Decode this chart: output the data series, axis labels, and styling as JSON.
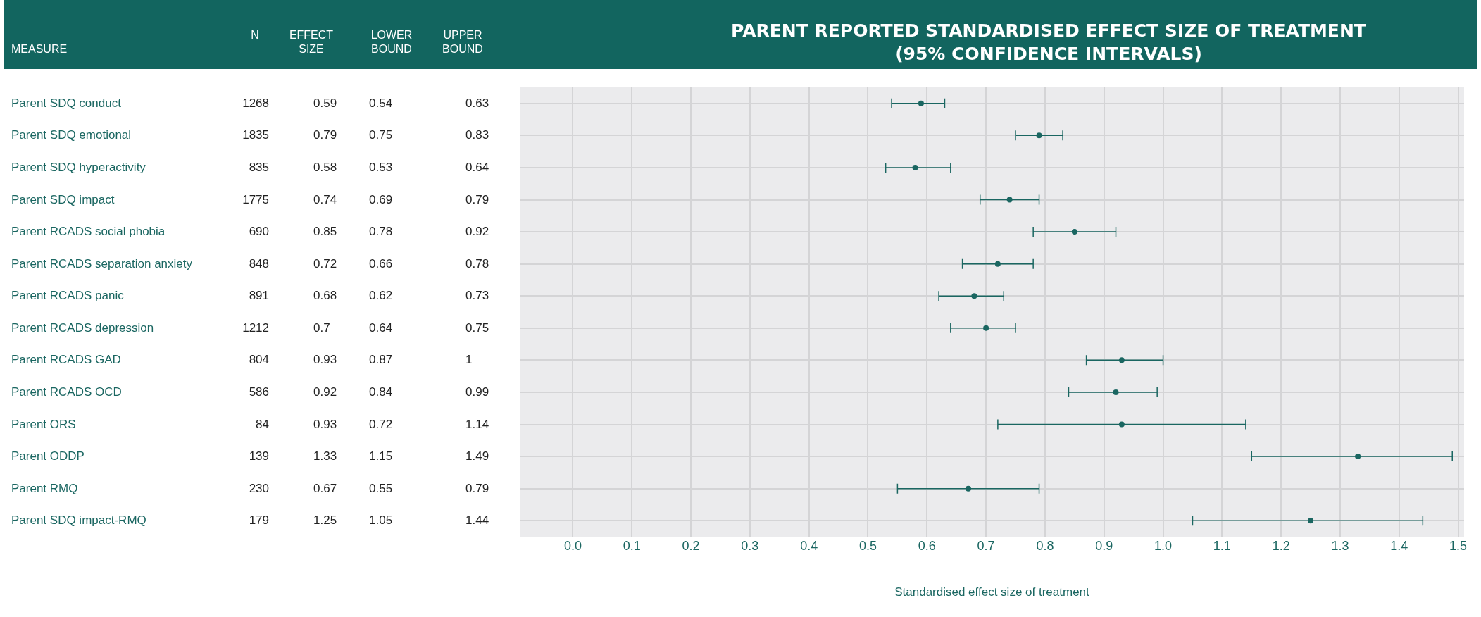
{
  "chart_data": [
    {
      "type": "other",
      "annotations": [
        "MEASURE",
        "N",
        "EFFECT SIZE",
        "LOWER BOUND",
        "UPPER BOUND",
        "Parent SDQ conduct",
        "1268",
        "0.59",
        "0.54",
        "0.63",
        "Parent SDQ emotional",
        "1835",
        "0.79",
        "0.75",
        "0.83",
        "Parent SDQ hyperactivity",
        "835",
        "0.58",
        "0.53",
        "0.64",
        "Parent SDQ impact",
        "1775",
        "0.74",
        "0.69",
        "0.79",
        "Parent RCADS social phobia",
        "690",
        "0.85",
        "0.78",
        "0.92",
        "Parent RCADS separation anxiety",
        "848",
        "0.72",
        "0.66",
        "0.78",
        "Parent RCADS panic",
        "891",
        "0.68",
        "0.62",
        "0.73",
        "Parent RCADS depression",
        "1212",
        "0.7",
        "0.64",
        "0.75",
        "Parent RCADS GAD",
        "804",
        "0.93",
        "0.87",
        "1",
        "Parent RCADS OCD",
        "586",
        "0.92",
        "0.84",
        "0.99",
        "Parent ORS",
        "84",
        "0.93",
        "0.72",
        "1.14",
        "Parent ODDP",
        "139",
        "1.33",
        "1.15",
        "1.49",
        "Parent RMQ",
        "230",
        "0.67",
        "0.55",
        "0.79",
        "Parent SDQ impact-RMQ",
        "179",
        "1.25",
        "1.05",
        "1.44"
      ]
    },
    {
      "type": "scatter",
      "orientation": "horizontal",
      "title": "PARENT REPORTED STANDARDISED EFFECT SIZE OF TREATMENT\n(95% CONFIDENCE INTERVALS)",
      "xlabel": "Standardised effect size of treatment",
      "categories": [
        null,
        null,
        null,
        null,
        null,
        null,
        null,
        null,
        null,
        null,
        null,
        null,
        null,
        null
      ],
      "values": [
        0.59,
        0.79,
        0.58,
        0.74,
        0.85,
        0.72,
        0.68,
        0.7,
        0.93,
        0.92,
        0.93,
        1.33,
        0.67,
        1.25
      ],
      "errors": [
        [
          0.54,
          0.63
        ],
        [
          0.75,
          0.83
        ],
        [
          0.53,
          0.64
        ],
        [
          0.69,
          0.79
        ],
        [
          0.78,
          0.92
        ],
        [
          0.66,
          0.78
        ],
        [
          0.62,
          0.73
        ],
        [
          0.64,
          0.75
        ],
        [
          0.87,
          1
        ],
        [
          0.84,
          0.99
        ],
        [
          0.72,
          1.14
        ],
        [
          1.15,
          1.49
        ],
        [
          0.55,
          0.79
        ],
        [
          1.05,
          1.44
        ]
      ],
      "color": "#1a6661",
      "marker": "circle",
      "xlim": [
        -0.09,
        1.51
      ],
      "xticks": [
        {
          "value": 0,
          "label": "0.0"
        },
        0.1,
        0.2,
        0.3,
        0.4,
        0.5,
        0.6,
        0.7,
        0.8,
        0.9,
        {
          "value": 1,
          "label": "1.0"
        },
        1.1,
        1.2,
        1.3,
        1.4,
        1.5
      ],
      "tick_labels": "x",
      "grid": true
    }
  ]
}
